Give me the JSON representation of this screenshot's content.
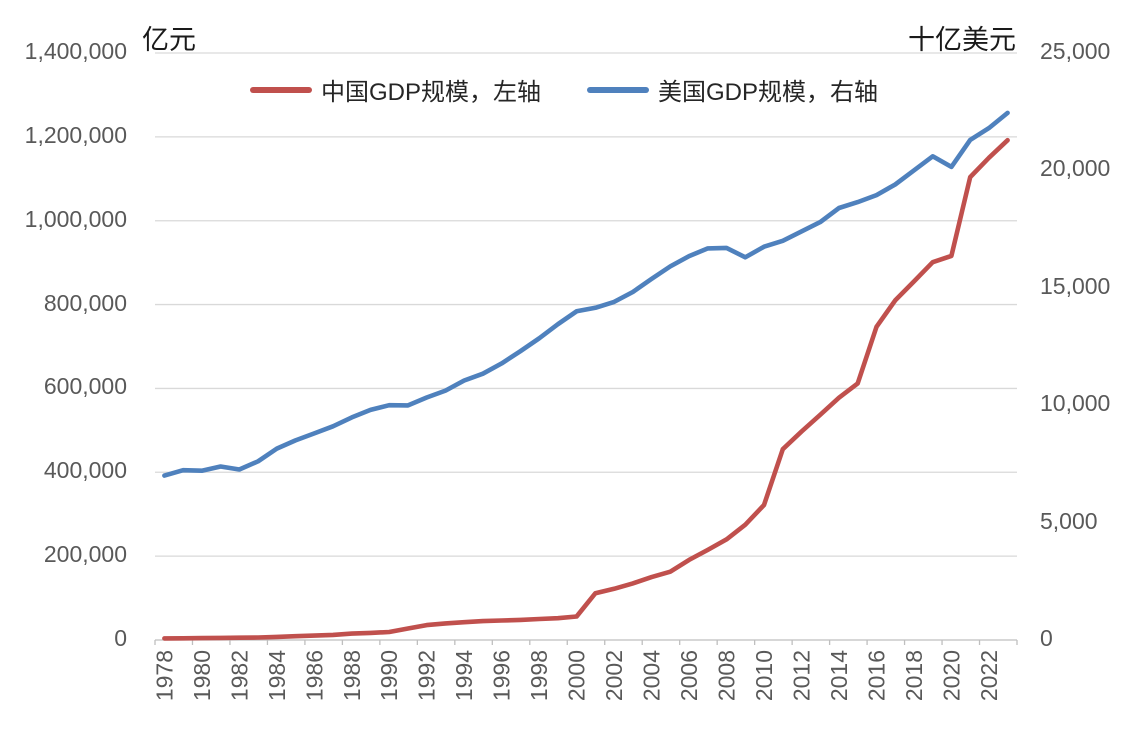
{
  "chart_data": {
    "type": "line",
    "title": "",
    "legend_position": "top",
    "grid": "horizontal-left-axis",
    "left_axis": {
      "label": "亿元",
      "min": 0,
      "max": 1400000,
      "step": 200000,
      "tick_labels": [
        "0",
        "200,000",
        "400,000",
        "600,000",
        "800,000",
        "1,000,000",
        "1,200,000",
        "1,400,000"
      ]
    },
    "right_axis": {
      "label": "十亿美元",
      "min": 0,
      "max": 25000,
      "step": 5000,
      "tick_labels": [
        "0",
        "5,000",
        "10,000",
        "15,000",
        "20,000",
        "25,000"
      ]
    },
    "x": [
      1978,
      1979,
      1980,
      1981,
      1982,
      1983,
      1984,
      1985,
      1986,
      1987,
      1988,
      1989,
      1990,
      1991,
      1992,
      1993,
      1994,
      1995,
      1996,
      1997,
      1998,
      1999,
      2000,
      2001,
      2002,
      2003,
      2004,
      2005,
      2006,
      2007,
      2008,
      2009,
      2010,
      2011,
      2012,
      2013,
      2014,
      2015,
      2016,
      2017,
      2018,
      2019,
      2020,
      2021,
      2022,
      2023
    ],
    "x_tick_labels": [
      "1978",
      "1980",
      "1982",
      "1984",
      "1986",
      "1988",
      "1990",
      "1992",
      "1994",
      "1996",
      "1998",
      "2000",
      "2002",
      "2004",
      "2006",
      "2008",
      "2010",
      "2012",
      "2014",
      "2016",
      "2018",
      "2020",
      "2022"
    ],
    "series": [
      {
        "name": "中国GDP规模，左轴",
        "axis": "left",
        "color": "#C0504D",
        "values": [
          3700,
          4100,
          4600,
          5000,
          5400,
          6000,
          7300,
          9100,
          10400,
          12200,
          15200,
          17000,
          19000,
          27500,
          35500,
          39500,
          42500,
          45000,
          46500,
          48000,
          50000,
          52000,
          56000,
          111500,
          122000,
          135000,
          150000,
          163000,
          191000,
          215000,
          240000,
          275000,
          322000,
          455000,
          497000,
          537000,
          578000,
          612000,
          747000,
          810000,
          855000,
          901000,
          916000,
          1104000,
          1150000,
          1192000
        ]
      },
      {
        "name": "美国GDP规模，右轴",
        "axis": "right",
        "color": "#4F81BD",
        "values": [
          7000,
          7230,
          7210,
          7390,
          7260,
          7610,
          8150,
          8500,
          8800,
          9100,
          9480,
          9800,
          10000,
          9990,
          10330,
          10620,
          11050,
          11340,
          11780,
          12300,
          12850,
          13450,
          14000,
          14150,
          14400,
          14820,
          15380,
          15910,
          16350,
          16680,
          16700,
          16300,
          16750,
          17000,
          17400,
          17800,
          18400,
          18650,
          18950,
          19400,
          20000,
          20600,
          20150,
          21300,
          21800,
          22450
        ]
      }
    ]
  }
}
